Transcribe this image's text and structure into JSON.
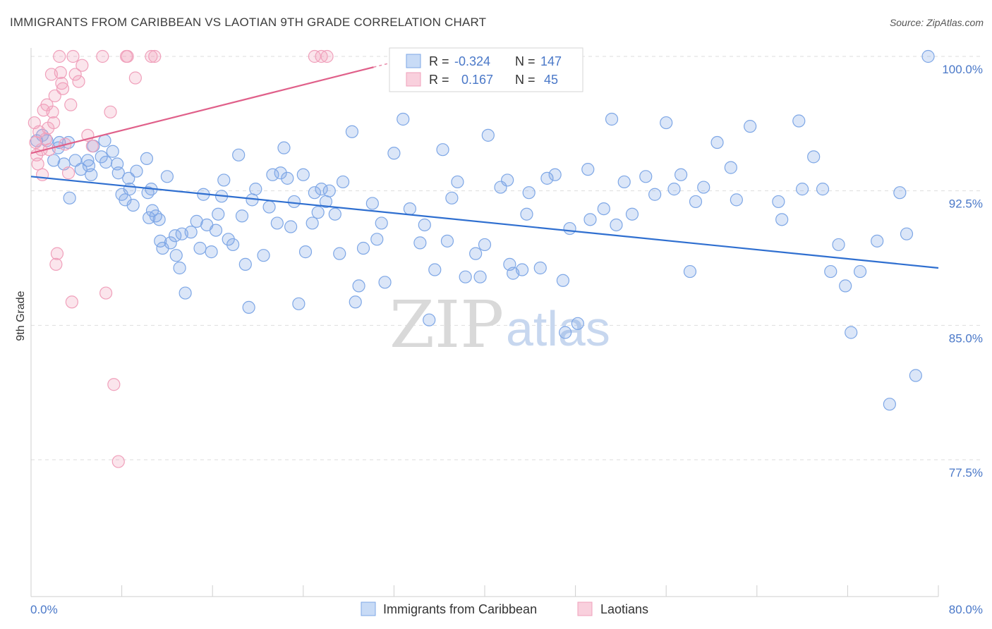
{
  "header": {
    "title": "IMMIGRANTS FROM CARIBBEAN VS LAOTIAN 9TH GRADE CORRELATION CHART",
    "source": "Source: ZipAtlas.com"
  },
  "watermark": {
    "zip": "ZIP",
    "atlas": "atlas"
  },
  "colors": {
    "blue": "#7ea7e6",
    "blue_line": "#2f6fd0",
    "pink": "#f0a0bb",
    "pink_line": "#e0608a",
    "label_blue": "#4a78c8",
    "grid": "#dddddd"
  },
  "legend_top": {
    "rows": [
      {
        "r_label": "R =",
        "r_value": "-0.324",
        "n_label": "N =",
        "n_value": "147",
        "color": "blue"
      },
      {
        "r_label": "R =",
        "r_value": " 0.167",
        "n_label": "N =",
        "n_value": " 45",
        "color": "pink"
      }
    ]
  },
  "legend_bottom": {
    "items": [
      {
        "label": "Immigrants from Caribbean",
        "color": "blue"
      },
      {
        "label": "Laotians",
        "color": "pink"
      }
    ]
  },
  "chart_data": {
    "type": "scatter",
    "title": "IMMIGRANTS FROM CARIBBEAN VS LAOTIAN 9TH GRADE CORRELATION CHART",
    "xlabel": "",
    "ylabel": "9th Grade",
    "xlim": [
      0,
      80
    ],
    "ylim": [
      70.9,
      101.5
    ],
    "x_tick_labels": [
      "0.0%",
      "80.0%"
    ],
    "y_ticks": [
      77.5,
      85.0,
      92.5,
      100.0
    ],
    "y_tick_labels": [
      "77.5%",
      "85.0%",
      "92.5%",
      "100.0%"
    ],
    "grid": "horizontal dashed",
    "legend": "top-center and bottom-center",
    "series": [
      {
        "name": "Immigrants from Caribbean",
        "color": "#7ea7e6",
        "trend": {
          "x": [
            0,
            80
          ],
          "y": [
            93.3,
            88.2
          ]
        },
        "points": [
          [
            0.5,
            95.3
          ],
          [
            1.0,
            95.6
          ],
          [
            1.4,
            95.3
          ],
          [
            2.0,
            94.2
          ],
          [
            2.4,
            94.9
          ],
          [
            2.5,
            95.2
          ],
          [
            2.9,
            94.0
          ],
          [
            3.3,
            95.2
          ],
          [
            3.4,
            92.1
          ],
          [
            3.9,
            94.2
          ],
          [
            4.4,
            93.7
          ],
          [
            5.0,
            94.2
          ],
          [
            5.1,
            93.9
          ],
          [
            5.3,
            93.4
          ],
          [
            5.5,
            95.0
          ],
          [
            6.2,
            94.4
          ],
          [
            6.5,
            95.3
          ],
          [
            6.6,
            94.1
          ],
          [
            7.2,
            94.7
          ],
          [
            7.6,
            94.0
          ],
          [
            7.7,
            93.5
          ],
          [
            8.0,
            92.3
          ],
          [
            8.3,
            92.0
          ],
          [
            8.6,
            93.2
          ],
          [
            8.7,
            92.6
          ],
          [
            9.0,
            91.7
          ],
          [
            9.3,
            93.6
          ],
          [
            10.2,
            94.3
          ],
          [
            10.3,
            92.4
          ],
          [
            10.4,
            91.0
          ],
          [
            10.6,
            92.6
          ],
          [
            10.7,
            91.4
          ],
          [
            11.0,
            91.1
          ],
          [
            11.3,
            90.9
          ],
          [
            11.4,
            89.7
          ],
          [
            11.6,
            89.3
          ],
          [
            12.0,
            93.3
          ],
          [
            12.3,
            89.6
          ],
          [
            12.7,
            90.0
          ],
          [
            12.8,
            88.9
          ],
          [
            13.1,
            88.2
          ],
          [
            13.3,
            90.1
          ],
          [
            13.6,
            86.8
          ],
          [
            14.1,
            90.2
          ],
          [
            14.6,
            90.8
          ],
          [
            14.9,
            89.3
          ],
          [
            15.2,
            92.3
          ],
          [
            15.5,
            90.6
          ],
          [
            15.9,
            89.1
          ],
          [
            16.3,
            90.3
          ],
          [
            16.5,
            91.2
          ],
          [
            16.8,
            92.2
          ],
          [
            17.0,
            93.1
          ],
          [
            17.4,
            89.8
          ],
          [
            17.8,
            89.5
          ],
          [
            18.3,
            94.5
          ],
          [
            18.6,
            91.1
          ],
          [
            18.9,
            88.4
          ],
          [
            19.2,
            86.0
          ],
          [
            19.5,
            92.0
          ],
          [
            19.8,
            92.6
          ],
          [
            20.5,
            88.9
          ],
          [
            21.0,
            91.6
          ],
          [
            21.3,
            93.4
          ],
          [
            21.7,
            90.7
          ],
          [
            22.0,
            93.5
          ],
          [
            22.3,
            94.9
          ],
          [
            22.6,
            93.2
          ],
          [
            22.9,
            90.5
          ],
          [
            23.2,
            91.9
          ],
          [
            23.6,
            86.2
          ],
          [
            24.0,
            93.4
          ],
          [
            24.2,
            89.1
          ],
          [
            24.8,
            90.7
          ],
          [
            25.0,
            92.4
          ],
          [
            25.3,
            91.3
          ],
          [
            25.6,
            92.6
          ],
          [
            26.0,
            91.9
          ],
          [
            26.3,
            92.5
          ],
          [
            26.8,
            91.2
          ],
          [
            27.2,
            89.0
          ],
          [
            27.5,
            93.0
          ],
          [
            28.3,
            95.8
          ],
          [
            28.6,
            86.3
          ],
          [
            28.9,
            87.2
          ],
          [
            29.3,
            89.3
          ],
          [
            30.1,
            91.8
          ],
          [
            30.5,
            89.8
          ],
          [
            30.9,
            90.7
          ],
          [
            31.2,
            87.4
          ],
          [
            32.0,
            94.6
          ],
          [
            32.5,
            98.7
          ],
          [
            32.8,
            96.5
          ],
          [
            33.4,
            91.5
          ],
          [
            34.3,
            89.6
          ],
          [
            34.7,
            90.6
          ],
          [
            35.1,
            85.3
          ],
          [
            35.6,
            88.1
          ],
          [
            36.3,
            94.8
          ],
          [
            36.7,
            89.7
          ],
          [
            37.1,
            92.1
          ],
          [
            37.6,
            93.0
          ],
          [
            38.3,
            87.7
          ],
          [
            39.2,
            89.0
          ],
          [
            39.6,
            87.7
          ],
          [
            40.0,
            89.5
          ],
          [
            40.3,
            95.6
          ],
          [
            41.4,
            92.7
          ],
          [
            42.0,
            93.1
          ],
          [
            42.2,
            88.4
          ],
          [
            42.5,
            87.9
          ],
          [
            43.3,
            88.1
          ],
          [
            43.7,
            91.2
          ],
          [
            43.9,
            92.4
          ],
          [
            44.9,
            88.2
          ],
          [
            45.5,
            93.2
          ],
          [
            46.2,
            93.4
          ],
          [
            46.9,
            87.5
          ],
          [
            47.1,
            84.6
          ],
          [
            47.5,
            90.4
          ],
          [
            48.2,
            85.1
          ],
          [
            49.1,
            93.7
          ],
          [
            49.3,
            90.9
          ],
          [
            50.5,
            91.5
          ],
          [
            51.2,
            96.5
          ],
          [
            51.6,
            90.6
          ],
          [
            52.3,
            93.0
          ],
          [
            53.0,
            91.2
          ],
          [
            54.2,
            93.3
          ],
          [
            55.0,
            92.3
          ],
          [
            56.0,
            96.3
          ],
          [
            56.7,
            92.6
          ],
          [
            57.3,
            93.4
          ],
          [
            58.1,
            88.0
          ],
          [
            58.6,
            91.9
          ],
          [
            59.3,
            92.7
          ],
          [
            60.5,
            95.2
          ],
          [
            61.7,
            93.8
          ],
          [
            62.2,
            92.0
          ],
          [
            63.4,
            96.1
          ],
          [
            65.9,
            91.9
          ],
          [
            66.2,
            90.9
          ],
          [
            67.7,
            96.4
          ],
          [
            68.0,
            92.6
          ],
          [
            69.0,
            94.4
          ],
          [
            69.8,
            92.6
          ],
          [
            70.5,
            88.0
          ],
          [
            71.2,
            89.5
          ],
          [
            71.8,
            87.2
          ],
          [
            72.3,
            84.6
          ],
          [
            73.1,
            88.0
          ],
          [
            74.6,
            89.7
          ],
          [
            75.7,
            80.6
          ],
          [
            76.6,
            92.4
          ],
          [
            77.2,
            90.1
          ],
          [
            78.0,
            82.2
          ],
          [
            79.1,
            100.0
          ]
        ]
      },
      {
        "name": "Laotians",
        "color": "#f0a0bb",
        "trend": {
          "x": [
            0,
            30.2
          ],
          "y": [
            94.6,
            99.4
          ]
        },
        "points": [
          [
            0.3,
            96.3
          ],
          [
            0.4,
            95.2
          ],
          [
            0.5,
            94.5
          ],
          [
            0.6,
            94.0
          ],
          [
            0.7,
            95.8
          ],
          [
            0.9,
            94.8
          ],
          [
            1.0,
            93.4
          ],
          [
            1.1,
            97.0
          ],
          [
            1.3,
            95.4
          ],
          [
            1.4,
            97.3
          ],
          [
            1.5,
            96.0
          ],
          [
            1.6,
            94.8
          ],
          [
            1.8,
            99.0
          ],
          [
            1.9,
            96.9
          ],
          [
            2.0,
            96.3
          ],
          [
            2.1,
            97.8
          ],
          [
            2.2,
            88.4
          ],
          [
            2.3,
            89.0
          ],
          [
            2.5,
            100.0
          ],
          [
            2.6,
            99.1
          ],
          [
            2.7,
            98.5
          ],
          [
            2.8,
            98.2
          ],
          [
            3.0,
            95.1
          ],
          [
            3.3,
            93.5
          ],
          [
            3.5,
            97.3
          ],
          [
            3.6,
            86.3
          ],
          [
            3.7,
            100.0
          ],
          [
            3.9,
            99.0
          ],
          [
            4.2,
            98.6
          ],
          [
            4.5,
            99.5
          ],
          [
            5.0,
            95.6
          ],
          [
            5.4,
            95.0
          ],
          [
            6.3,
            100.0
          ],
          [
            6.6,
            86.8
          ],
          [
            7.0,
            96.9
          ],
          [
            7.3,
            81.7
          ],
          [
            7.7,
            77.4
          ],
          [
            8.4,
            100.0
          ],
          [
            8.5,
            100.0
          ],
          [
            9.2,
            98.8
          ],
          [
            10.6,
            100.0
          ],
          [
            10.9,
            100.0
          ],
          [
            25.0,
            100.0
          ],
          [
            25.6,
            100.0
          ],
          [
            26.1,
            100.0
          ]
        ]
      }
    ]
  }
}
